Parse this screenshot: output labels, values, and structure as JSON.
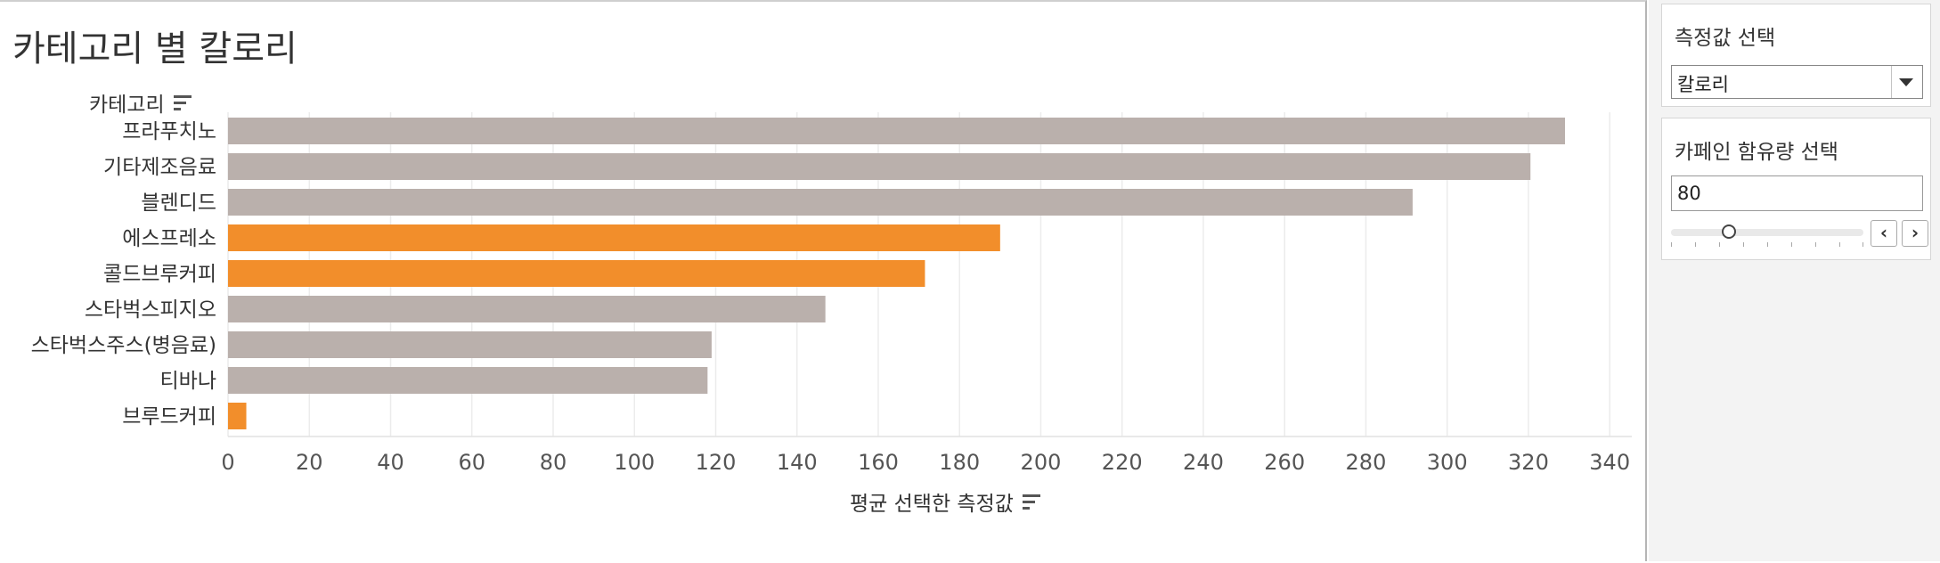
{
  "dashboard": {
    "title": "카테고리 별 칼로리",
    "category_header": "카테고리",
    "x_axis_title": "평균 선택한 측정값"
  },
  "colors": {
    "gray_bar": "#bab0ac",
    "orange_bar": "#f28e2b"
  },
  "chart_data": {
    "type": "bar",
    "orientation": "horizontal",
    "title": "카테고리 별 칼로리",
    "xlabel": "평균 선택한 측정값",
    "ylabel": "카테고리",
    "xlim": [
      0,
      345
    ],
    "xticks": [
      0,
      20,
      40,
      60,
      80,
      100,
      120,
      140,
      160,
      180,
      200,
      220,
      240,
      260,
      280,
      300,
      320,
      340
    ],
    "grid": true,
    "categories": [
      "프라푸치노",
      "기타제조음료",
      "블렌디드",
      "에스프레소",
      "콜드브루커피",
      "스타벅스피지오",
      "스타벅스주스(병음료)",
      "티바나",
      "브루드커피"
    ],
    "values": [
      329,
      320.5,
      291.5,
      190,
      171.5,
      147,
      119,
      118,
      4.5
    ],
    "highlighted": [
      false,
      false,
      false,
      true,
      true,
      false,
      false,
      false,
      true
    ]
  },
  "controls": {
    "measure_select": {
      "title": "측정값 선택",
      "value": "칼로리"
    },
    "caffeine_filter": {
      "title": "카페인 함유량 선택",
      "value": "80",
      "slider_fraction": 0.3
    }
  }
}
